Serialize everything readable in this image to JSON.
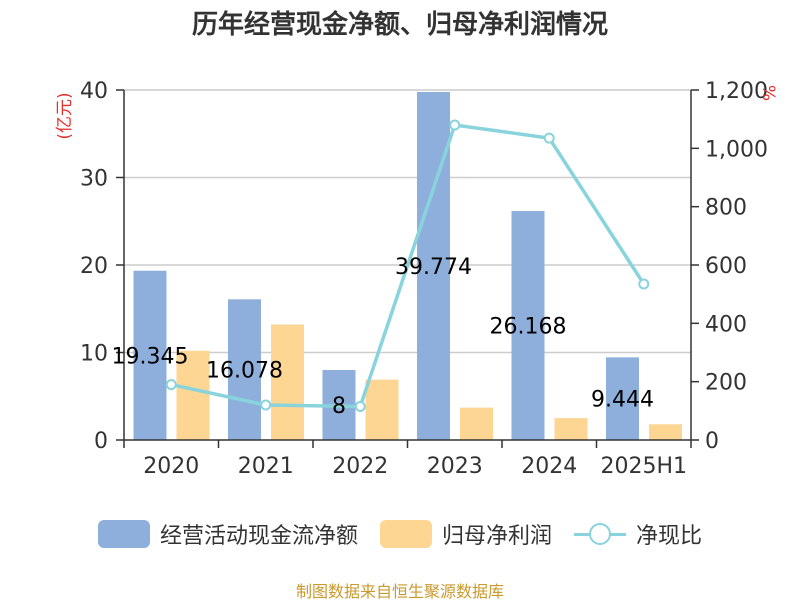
{
  "title": "历年经营现金净额、归母净利润情况",
  "source": "制图数据来自恒生聚源数据库",
  "colors": {
    "cash_bar": "#8eafdb",
    "profit_bar": "#fdd693",
    "ratio_line": "#88d3dc",
    "axis": "#333333",
    "grid": "#cccccc",
    "unit_label": "#e0302d",
    "source": "#c99a2e"
  },
  "chart_data": {
    "type": "bar",
    "categories": [
      "2020",
      "2021",
      "2022",
      "2023",
      "2024",
      "2025H1"
    ],
    "left_axis": {
      "label": "(亿元)",
      "ylim": [
        0,
        40
      ],
      "ticks": [
        "0",
        "10",
        "20",
        "30",
        "40"
      ]
    },
    "right_axis": {
      "label": "%",
      "ylim": [
        0,
        1200
      ],
      "ticks": [
        "0",
        "200",
        "400",
        "600",
        "800",
        "1,000",
        "1,200"
      ]
    },
    "grid": true,
    "legend_position": "bottom",
    "series": [
      {
        "name": "经营活动现金流净额",
        "type": "bar",
        "axis": "left",
        "values": [
          19.345,
          16.078,
          8,
          39.774,
          26.168,
          9.444
        ],
        "labels": [
          "19.345",
          "16.078",
          "8",
          "39.774",
          "26.168",
          "9.444"
        ]
      },
      {
        "name": "归母净利润",
        "type": "bar",
        "axis": "left",
        "values": [
          10.2,
          13.2,
          6.9,
          3.7,
          2.5,
          1.8
        ]
      },
      {
        "name": "净现比",
        "type": "line",
        "axis": "right",
        "values": [
          190,
          120,
          115,
          1080,
          1035,
          535
        ]
      }
    ]
  }
}
